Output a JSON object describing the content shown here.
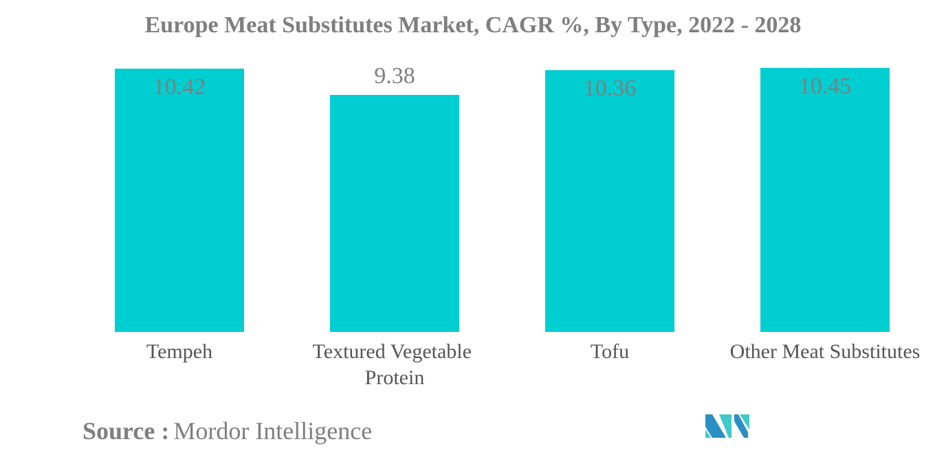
{
  "chart_data": {
    "type": "bar",
    "title": "Europe Meat Substitutes Market, CAGR %, By Type, 2022 - 2028",
    "categories": [
      "Tempeh",
      "Textured Vegetable Protein",
      "Tofu",
      "Other Meat Substitutes"
    ],
    "values": [
      10.42,
      9.38,
      10.36,
      10.45
    ],
    "data_labels": [
      "10.42",
      "9.38",
      "10.36",
      "10.45"
    ],
    "xlabel": "",
    "ylabel": "",
    "ylim": [
      0,
      13
    ],
    "grid": false,
    "bar_color": "#00ced1",
    "label_color": "#7f7f7f"
  },
  "source": {
    "label": "Source :",
    "value": "Mordor Intelligence"
  },
  "logo": {
    "colors": [
      "#2a8fc4",
      "#40c9c9"
    ]
  }
}
